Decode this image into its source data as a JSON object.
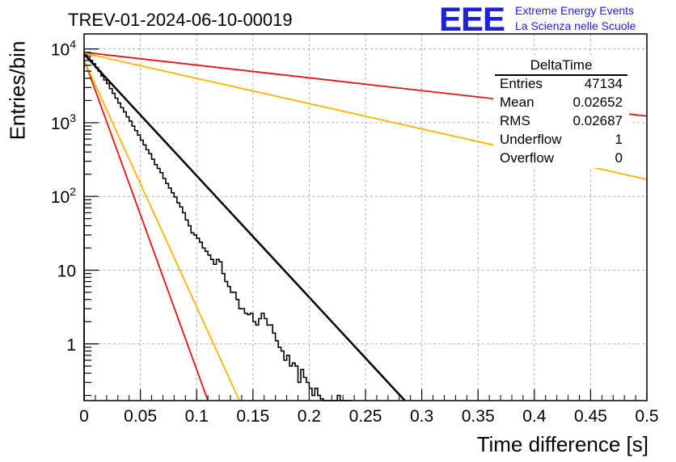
{
  "title": "TREV-01-2024-06-10-00019",
  "logo": {
    "mark": "EEE",
    "line1": "Extreme Energy Events",
    "line2": "La Scienza nelle Scuole"
  },
  "stats": {
    "name": "DeltaTime",
    "rows": [
      {
        "key": "Entries",
        "value": "47134"
      },
      {
        "key": "Mean",
        "value": "0.02652"
      },
      {
        "key": "RMS",
        "value": "0.02687"
      },
      {
        "key": "Underflow",
        "value": "1"
      },
      {
        "key": "Overflow",
        "value": "0"
      }
    ]
  },
  "colors": {
    "histogram": "#000000",
    "fit": "#000000",
    "red": "#e81010",
    "orange": "#ffb400",
    "grid": "#b0b0b0",
    "logo": "#1f1fe0"
  },
  "chart_data": {
    "type": "line",
    "title": "TREV-01-2024-06-10-00019",
    "xlabel": "Time difference [s]",
    "ylabel": "Entries/bin",
    "xlim": [
      0,
      0.5
    ],
    "ylim": [
      0.17,
      16000
    ],
    "yscale": "log",
    "grid": true,
    "xticks": [
      0,
      0.05,
      0.1,
      0.15,
      0.2,
      0.25,
      0.3,
      0.35,
      0.4,
      0.45,
      0.5
    ],
    "xtick_labels": [
      "0",
      "0.05",
      "0.1",
      "0.15",
      "0.2",
      "0.25",
      "0.3",
      "0.35",
      "0.4",
      "0.45",
      "0.5"
    ],
    "yticks": [
      1,
      10,
      100,
      1000,
      10000
    ],
    "ytick_labels": [
      "1",
      "10",
      "10^2",
      "10^3",
      "10^4"
    ],
    "histogram": {
      "bin_width": 0.0025,
      "counts": [
        8500,
        7600,
        7000,
        6300,
        5600,
        5000,
        4300,
        3800,
        3400,
        2900,
        2500,
        2150,
        1850,
        1600,
        1400,
        1200,
        1050,
        900,
        780,
        680,
        580,
        500,
        430,
        380,
        320,
        270,
        240,
        210,
        175,
        150,
        130,
        112,
        98,
        82,
        72,
        60,
        48,
        40,
        32,
        30,
        27,
        24,
        20,
        18,
        16,
        14,
        12,
        14,
        13,
        9,
        7,
        6,
        5,
        5,
        4,
        3,
        3,
        2.6,
        2.5,
        2.6,
        2.0,
        1.8,
        2.2,
        2.6,
        2.2,
        1.8,
        1.8,
        1.4,
        1.1,
        0.9,
        0.8,
        0.6,
        0.7,
        0.5,
        0.55,
        0.5,
        0.3,
        0.45,
        0.35,
        0.3,
        0.25,
        0.2,
        0.25,
        0.2,
        0.18,
        0.15,
        0.15,
        0.12,
        0.1,
        0.1,
        0.2,
        0.1,
        0.1,
        0.1,
        0.1
      ]
    },
    "series": [
      {
        "color": "black",
        "x": [
          0,
          0.285
        ],
        "y": [
          8500,
          0.17
        ],
        "width": 2.5
      },
      {
        "color": "red",
        "x": [
          0,
          0.11
        ],
        "y": [
          7200,
          0.17
        ],
        "width": 1.8
      },
      {
        "color": "orange",
        "x": [
          0,
          0.138
        ],
        "y": [
          7000,
          0.17
        ],
        "width": 1.8
      },
      {
        "color": "red",
        "x": [
          0,
          0.5
        ],
        "y": [
          9000,
          1230
        ],
        "width": 1.8
      },
      {
        "color": "orange",
        "x": [
          0,
          0.5
        ],
        "y": [
          8800,
          170
        ],
        "width": 1.8
      }
    ]
  }
}
